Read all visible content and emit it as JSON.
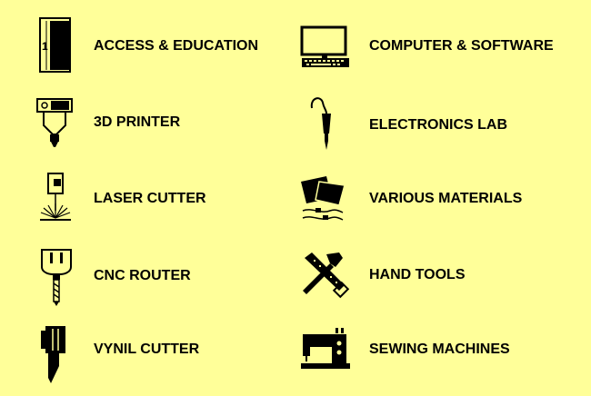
{
  "background": "#ffff99",
  "items": [
    {
      "label": "ACCESS & EDUCATION",
      "icon": "door-icon"
    },
    {
      "label": "COMPUTER & SOFTWARE",
      "icon": "computer-icon"
    },
    {
      "label": "3D PRINTER",
      "icon": "3d-printer-icon"
    },
    {
      "label": "ELECTRONICS LAB",
      "icon": "soldering-iron-icon"
    },
    {
      "label": "LASER CUTTER",
      "icon": "laser-cutter-icon"
    },
    {
      "label": "VARIOUS MATERIALS",
      "icon": "materials-icon"
    },
    {
      "label": "CNC ROUTER",
      "icon": "cnc-router-icon"
    },
    {
      "label": "HAND TOOLS",
      "icon": "hand-tools-icon"
    },
    {
      "label": "VYNIL CUTTER",
      "icon": "vinyl-cutter-icon"
    },
    {
      "label": "SEWING MACHINES",
      "icon": "sewing-machine-icon"
    }
  ]
}
